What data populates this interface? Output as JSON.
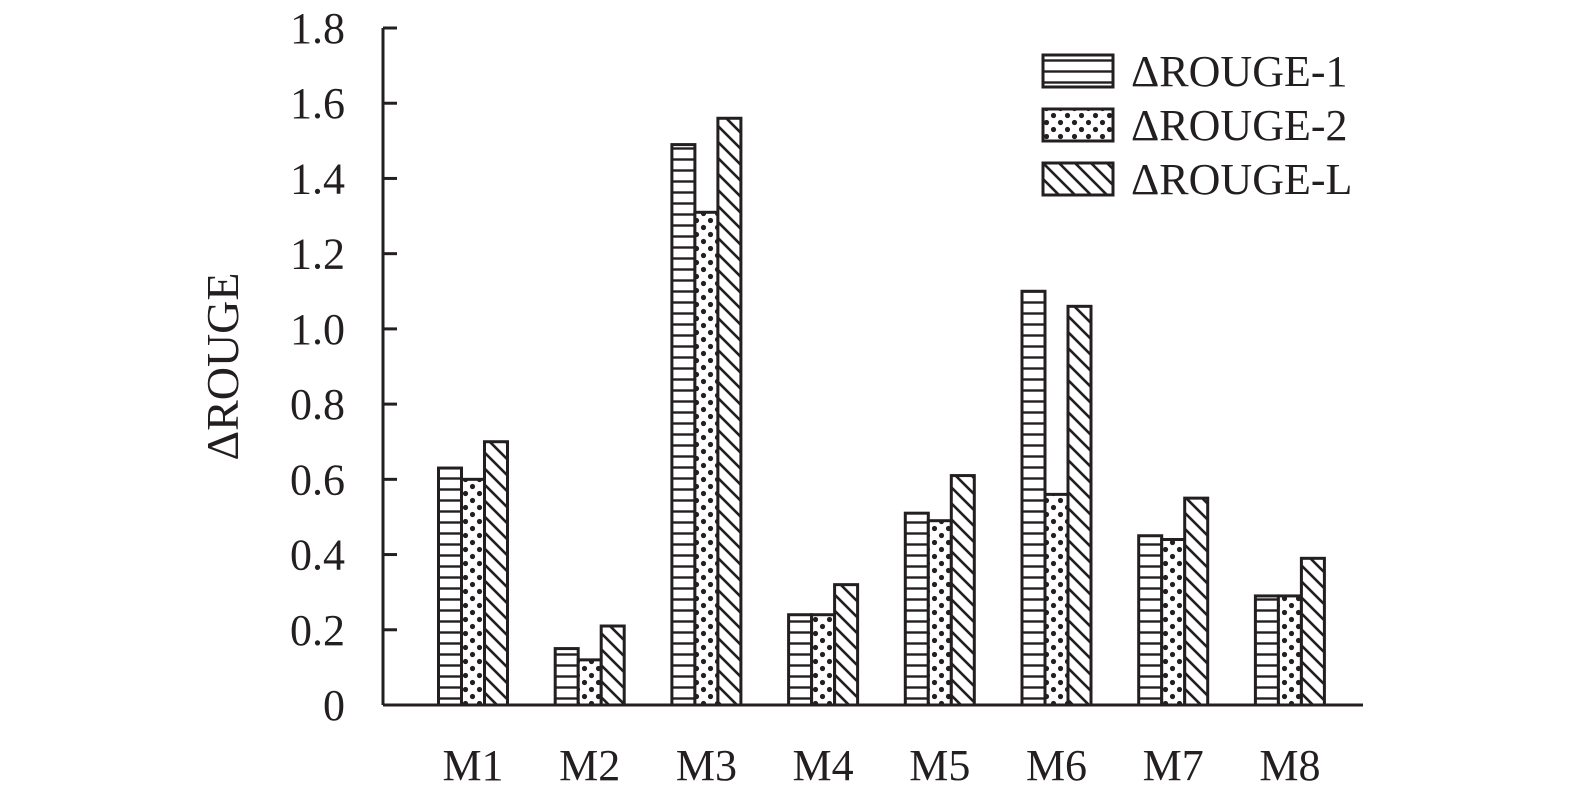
{
  "chart_data": {
    "type": "bar",
    "title": "",
    "xlabel": "",
    "ylabel": "ΔROUGE",
    "ylim": [
      0,
      1.8
    ],
    "yticks": [
      0,
      0.2,
      0.4,
      0.6,
      0.8,
      1.0,
      1.2,
      1.4,
      1.6,
      1.8
    ],
    "ytick_labels": [
      "0",
      "0.2",
      "0.4",
      "0.6",
      "0.8",
      "1.0",
      "1.2",
      "1.4",
      "1.6",
      "1.8"
    ],
    "categories": [
      "M1",
      "M2",
      "M3",
      "M4",
      "M5",
      "M6",
      "M7",
      "M8"
    ],
    "series": [
      {
        "name": "ΔROUGE-1",
        "pattern": "horizontal-lines",
        "values": [
          0.63,
          0.15,
          1.49,
          0.24,
          0.51,
          1.1,
          0.45,
          0.29
        ]
      },
      {
        "name": "ΔROUGE-2",
        "pattern": "dots",
        "values": [
          0.6,
          0.12,
          1.31,
          0.24,
          0.49,
          0.56,
          0.44,
          0.29
        ]
      },
      {
        "name": "ΔROUGE-L",
        "pattern": "diagonal-lines",
        "values": [
          0.7,
          0.21,
          1.56,
          0.32,
          0.61,
          1.06,
          0.55,
          0.39
        ]
      }
    ],
    "legend_position": "top-right",
    "grid": false,
    "colors": {
      "stroke": "#231f20",
      "fill": "#ffffff"
    }
  }
}
